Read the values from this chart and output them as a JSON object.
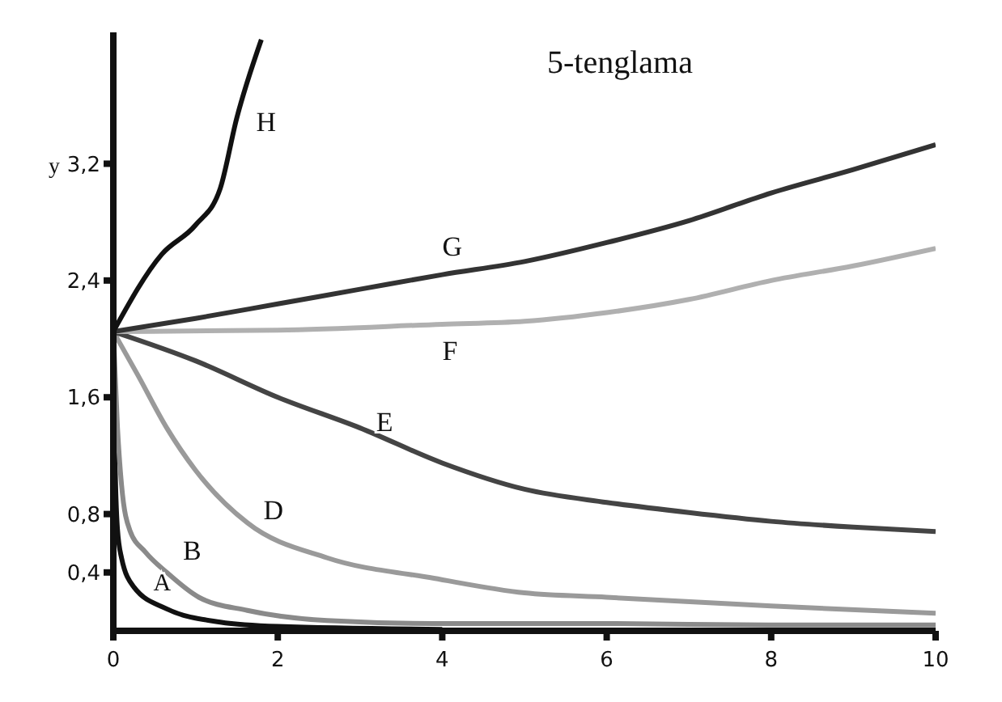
{
  "chart_data": {
    "type": "line",
    "title": "5-tenglama",
    "ylabel": "y",
    "xlim": [
      0,
      10
    ],
    "xticks": [
      0,
      2,
      4,
      6,
      8,
      10
    ],
    "ylim": [
      0,
      4.1
    ],
    "yticks": [
      {
        "value": 0.4,
        "label": "0,4"
      },
      {
        "value": 0.8,
        "label": "0,8"
      },
      {
        "value": 1.6,
        "label": "1,6"
      },
      {
        "value": 2.4,
        "label": "2,4"
      },
      {
        "value": 3.2,
        "label": "3,2"
      }
    ],
    "grid": false,
    "legend": false,
    "marker": "none",
    "series": [
      {
        "name": "A",
        "color": "#111111",
        "x": [
          0,
          0.02,
          0.05,
          0.1,
          0.25,
          0.65,
          1.3,
          2,
          4
        ],
        "values": [
          2.05,
          1.2,
          0.7,
          0.5,
          0.3,
          0.15,
          0.06,
          0.03,
          0.01
        ]
      },
      {
        "name": "B",
        "color": "#8a8a8a",
        "x": [
          0,
          0.05,
          0.1,
          0.2,
          0.39,
          0.65,
          1.04,
          1.63,
          2.6,
          3.9,
          6,
          8,
          10
        ],
        "values": [
          2.05,
          1.4,
          1.0,
          0.69,
          0.54,
          0.4,
          0.23,
          0.14,
          0.07,
          0.05,
          0.05,
          0.04,
          0.04
        ]
      },
      {
        "name": "D",
        "color": "#9a9a9a",
        "x": [
          0,
          0.3,
          0.65,
          1.0,
          1.63,
          2.6,
          3.9,
          5,
          6,
          8,
          10
        ],
        "values": [
          2.05,
          1.75,
          1.39,
          1.1,
          0.74,
          0.5,
          0.36,
          0.26,
          0.23,
          0.17,
          0.12
        ]
      },
      {
        "name": "E",
        "color": "#444444",
        "x": [
          0,
          1,
          2,
          3,
          4,
          5,
          6,
          7,
          8,
          9,
          10
        ],
        "values": [
          2.05,
          1.85,
          1.6,
          1.39,
          1.15,
          0.97,
          0.88,
          0.81,
          0.75,
          0.71,
          0.68
        ]
      },
      {
        "name": "F",
        "color": "#b0b0b0",
        "x": [
          0,
          2,
          4,
          5,
          6,
          7,
          8,
          9,
          10
        ],
        "values": [
          2.05,
          2.06,
          2.1,
          2.12,
          2.18,
          2.27,
          2.4,
          2.5,
          2.62
        ]
      },
      {
        "name": "G",
        "color": "#333333",
        "x": [
          0,
          1,
          2,
          3,
          4,
          5,
          6,
          7,
          8,
          9,
          10
        ],
        "values": [
          2.05,
          2.14,
          2.24,
          2.34,
          2.44,
          2.53,
          2.66,
          2.81,
          3.0,
          3.16,
          3.33
        ]
      },
      {
        "name": "H",
        "color": "#111111",
        "x": [
          0,
          0.59,
          1.0,
          1.3,
          1.5,
          1.8
        ],
        "values": [
          2.05,
          2.58,
          2.78,
          3.03,
          3.51,
          4.05
        ]
      }
    ]
  }
}
